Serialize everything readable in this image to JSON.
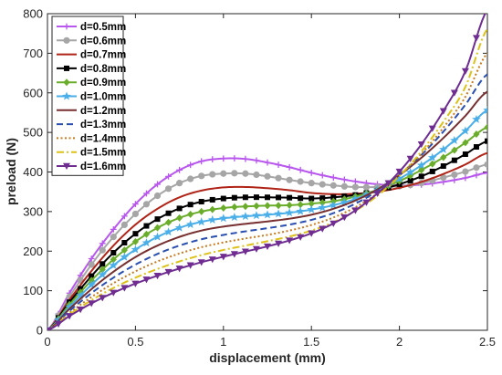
{
  "chart_data": {
    "type": "line",
    "xlabel": "displacement (mm)",
    "ylabel": "preload (N)",
    "xlim": [
      0,
      2.5
    ],
    "ylim": [
      0,
      800
    ],
    "x_ticks": [
      "0",
      "0.5",
      "1",
      "1.5",
      "2",
      "2.5"
    ],
    "y_ticks": [
      "0",
      "100",
      "200",
      "300",
      "400",
      "500",
      "600",
      "700",
      "800"
    ],
    "legend_position": "top-left",
    "grid": false,
    "x": [
      0,
      0.125,
      0.25,
      0.375,
      0.5,
      0.625,
      0.75,
      0.875,
      1.0,
      1.125,
      1.25,
      1.375,
      1.5,
      1.625,
      1.75,
      1.875,
      2.0,
      2.125,
      2.25,
      2.375,
      2.5
    ],
    "series": [
      {
        "name": "d=0.5mm",
        "color": "#b857ee",
        "line": "solid",
        "marker": "plus",
        "values": [
          0,
          94,
          181,
          255,
          319,
          369,
          405,
          427,
          434,
          433,
          424,
          412,
          398,
          386,
          376,
          369,
          366,
          368,
          375,
          385,
          398
        ]
      },
      {
        "name": "d=0.6mm",
        "color": "#a6a6a6",
        "line": "solid",
        "marker": "circle",
        "values": [
          0,
          85,
          166,
          236,
          294,
          340,
          372,
          390,
          396,
          396,
          389,
          380,
          372,
          366,
          362,
          362,
          364,
          372,
          386,
          401,
          419
        ]
      },
      {
        "name": "d=0.7mm",
        "color": "#b02418",
        "line": "solid",
        "marker": "none",
        "values": [
          0,
          77,
          150,
          214,
          267,
          307,
          336,
          353,
          361,
          362,
          359,
          354,
          347,
          344,
          345,
          350,
          360,
          375,
          395,
          419,
          448
        ]
      },
      {
        "name": "d=0.8mm",
        "color": "#000000",
        "line": "solid",
        "marker": "square",
        "values": [
          0,
          71,
          137,
          196,
          244,
          281,
          308,
          325,
          333,
          336,
          336,
          335,
          333,
          336,
          342,
          353,
          369,
          389,
          415,
          445,
          478
        ]
      },
      {
        "name": "d=0.9mm",
        "color": "#6aad2a",
        "line": "solid",
        "marker": "diamond",
        "values": [
          0,
          65,
          126,
          179,
          224,
          259,
          284,
          300,
          309,
          313,
          315,
          316,
          320,
          326,
          338,
          355,
          377,
          405,
          437,
          474,
          513
        ]
      },
      {
        "name": "d=1.0mm",
        "color": "#4aaee8",
        "line": "solid",
        "marker": "star",
        "values": [
          0,
          59,
          115,
          164,
          204,
          236,
          259,
          274,
          283,
          288,
          292,
          297,
          305,
          316,
          332,
          355,
          383,
          417,
          457,
          504,
          556
        ]
      },
      {
        "name": "d=1.2mm",
        "color": "#772f2f",
        "line": "solid",
        "marker": "none",
        "values": [
          0,
          54,
          104,
          148,
          185,
          214,
          236,
          252,
          262,
          269,
          275,
          282,
          292,
          307,
          328,
          356,
          392,
          436,
          486,
          542,
          603
        ]
      },
      {
        "name": "d=1.3mm",
        "color": "#2a4fb0",
        "line": "dashed",
        "marker": "none",
        "values": [
          0,
          49,
          94,
          133,
          166,
          193,
          214,
          230,
          241,
          250,
          258,
          267,
          279,
          296,
          320,
          352,
          393,
          443,
          502,
          570,
          647
        ]
      },
      {
        "name": "d=1.4mm",
        "color": "#c77b1f",
        "line": "dotted",
        "marker": "none",
        "values": [
          0,
          44,
          84,
          119,
          149,
          174,
          194,
          210,
          222,
          232,
          241,
          252,
          266,
          285,
          311,
          346,
          391,
          446,
          512,
          590,
          700
        ]
      },
      {
        "name": "d=1.5mm",
        "color": "#dcc21a",
        "line": "dashdot",
        "marker": "none",
        "values": [
          0,
          40,
          76,
          107,
          133,
          155,
          174,
          190,
          203,
          214,
          225,
          237,
          252,
          273,
          302,
          340,
          390,
          452,
          527,
          615,
          762
        ]
      },
      {
        "name": "d=1.6mm",
        "color": "#6f2c91",
        "line": "solid",
        "marker": "triangle-down",
        "values": [
          0,
          36,
          68,
          95,
          118,
          138,
          156,
          172,
          186,
          199,
          212,
          227,
          245,
          270,
          303,
          346,
          401,
          470,
          554,
          655,
          810
        ]
      }
    ]
  }
}
